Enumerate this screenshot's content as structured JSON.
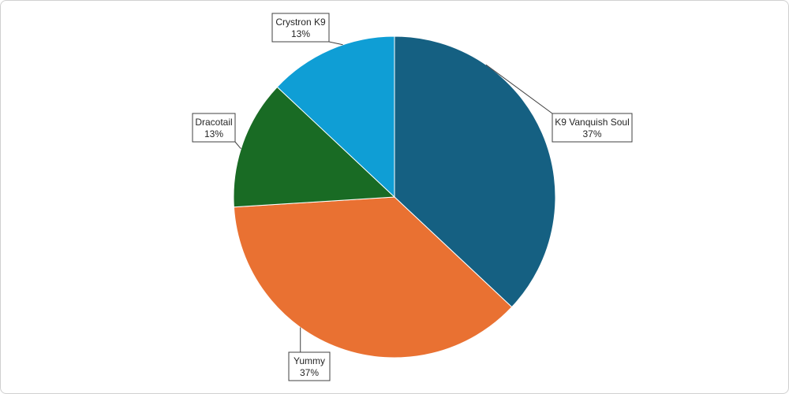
{
  "chart_data": {
    "type": "pie",
    "slices": [
      {
        "name": "K9 Vanquish Soul",
        "value": 37,
        "label": "37%",
        "color": "#156082"
      },
      {
        "name": "Yummy",
        "value": 37,
        "label": "37%",
        "color": "#E97132"
      },
      {
        "name": "Dracotail",
        "value": 13,
        "label": "13%",
        "color": "#196B24"
      },
      {
        "name": "Crystron K9",
        "value": 13,
        "label": "13%",
        "color": "#0F9ED5"
      }
    ],
    "start_angle": "12 o'clock",
    "direction": "clockwise",
    "legend": "none",
    "data_labels": "callouts with category name and percentage"
  }
}
